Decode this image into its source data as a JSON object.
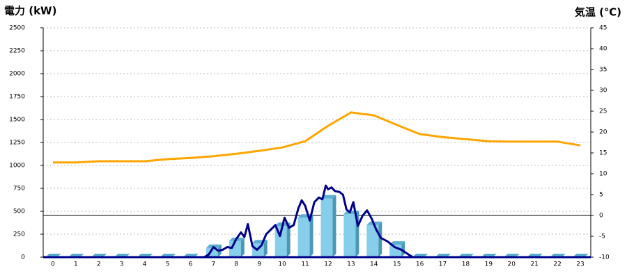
{
  "chart_data": {
    "type": "bar",
    "y_label": "電力 (kW)",
    "y_label_color": "#1f6fc0",
    "y2_label": "気温 (℃)",
    "y2_label_color": "#f08a1c",
    "categories": [
      "0",
      "1",
      "2",
      "3",
      "4",
      "5",
      "6",
      "7",
      "8",
      "9",
      "10",
      "11",
      "12",
      "13",
      "14",
      "15",
      "16",
      "17",
      "18",
      "19",
      "20",
      "21",
      "22",
      "23"
    ],
    "ylim": [
      0,
      2500
    ],
    "yticks": [
      0,
      250,
      500,
      750,
      1000,
      1250,
      1500,
      1750,
      2000,
      2250,
      2500
    ],
    "y2lim": [
      -10,
      45
    ],
    "y2ticks": [
      -10,
      -5,
      0,
      5,
      10,
      15,
      20,
      25,
      30,
      35,
      40,
      45
    ],
    "grid": true,
    "series": [
      {
        "type": "bar",
        "color": "#87ceeb",
        "values": [
          0,
          0,
          0,
          0,
          0,
          0,
          0,
          100,
          175,
          150,
          340,
          430,
          640,
          470,
          350,
          135,
          0,
          0,
          0,
          0,
          0,
          0,
          0,
          0
        ]
      },
      {
        "type": "line",
        "color": "#00008b",
        "x": [
          0,
          6.5,
          6.6,
          6.8,
          7.0,
          7.2,
          7.4,
          7.6,
          7.8,
          8.0,
          8.2,
          8.35,
          8.5,
          8.7,
          8.9,
          9.1,
          9.3,
          9.5,
          9.7,
          9.9,
          10.1,
          10.3,
          10.5,
          10.7,
          10.85,
          11.0,
          11.2,
          11.4,
          11.6,
          11.75,
          11.9,
          12.0,
          12.15,
          12.3,
          12.5,
          12.65,
          12.8,
          12.95,
          13.1,
          13.3,
          13.5,
          13.7,
          13.9,
          14.1,
          14.3,
          14.6,
          14.9,
          15.2,
          15.5,
          15.7,
          16,
          23.3
        ],
        "values": [
          0,
          0,
          0,
          30,
          110,
          70,
          80,
          110,
          100,
          200,
          270,
          220,
          360,
          120,
          80,
          130,
          250,
          300,
          350,
          230,
          430,
          320,
          350,
          530,
          620,
          560,
          400,
          600,
          650,
          630,
          780,
          740,
          760,
          720,
          710,
          680,
          520,
          490,
          600,
          340,
          450,
          510,
          420,
          300,
          210,
          170,
          110,
          80,
          30,
          0,
          0,
          0
        ]
      },
      {
        "type": "line",
        "color": "#ffa500",
        "axis": "y2",
        "values": [
          12.7,
          12.7,
          13,
          13,
          13,
          13.5,
          13.8,
          14.2,
          14.8,
          15.5,
          16.3,
          17.8,
          21.5,
          24.7,
          24,
          21.7,
          19.5,
          18.8,
          18.3,
          17.8,
          17.7,
          17.7,
          17.7,
          16.8
        ]
      }
    ]
  }
}
